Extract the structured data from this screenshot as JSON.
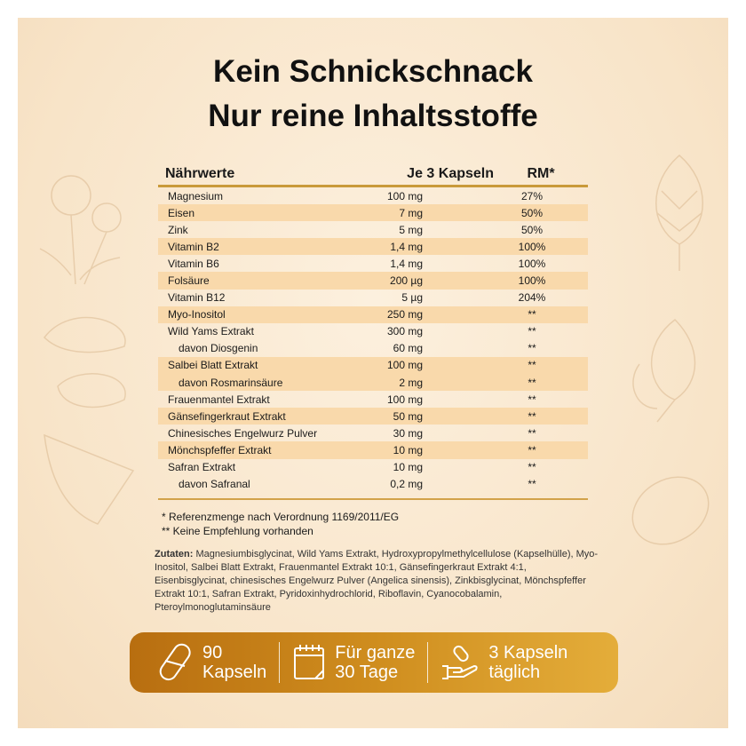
{
  "title": {
    "line1": "Kein Schnickschnack",
    "line2": "Nur reine Inhaltsstoffe"
  },
  "table": {
    "headers": [
      "Nährwerte",
      "Je 3 Kapseln",
      "RM*"
    ],
    "rows": [
      {
        "name": "Magnesium",
        "amount": "100 mg",
        "rm": "27%"
      },
      {
        "name": "Eisen",
        "amount": "7 mg",
        "rm": "50%"
      },
      {
        "name": "Zink",
        "amount": "5 mg",
        "rm": "50%"
      },
      {
        "name": "Vitamin B2",
        "amount": "1,4 mg",
        "rm": "100%"
      },
      {
        "name": "Vitamin B6",
        "amount": "1,4 mg",
        "rm": "100%"
      },
      {
        "name": "Folsäure",
        "amount": "200 µg",
        "rm": "100%"
      },
      {
        "name": "Vitamin B12",
        "amount": "5 µg",
        "rm": "204%"
      },
      {
        "name": "Myo-Inositol",
        "amount": "250 mg",
        "rm": "**"
      },
      {
        "name": "Wild Yams Extrakt",
        "amount": "300 mg",
        "rm": "**"
      },
      {
        "name": "davon Diosgenin",
        "amount": "60 mg",
        "rm": "**"
      },
      {
        "name": "Salbei Blatt Extrakt",
        "amount": "100 mg",
        "rm": "**"
      },
      {
        "name": "davon Rosmarinsäure",
        "amount": "2 mg",
        "rm": "**"
      },
      {
        "name": "Frauenmantel Extrakt",
        "amount": "100 mg",
        "rm": "**"
      },
      {
        "name": "Gänsefingerkraut Extrakt",
        "amount": "50 mg",
        "rm": "**"
      },
      {
        "name": "Chinesisches Engelwurz Pulver",
        "amount": "30 mg",
        "rm": "**"
      },
      {
        "name": "Mönchspfeffer Extrakt",
        "amount": "10 mg",
        "rm": "**"
      },
      {
        "name": "Safran Extrakt",
        "amount": "10 mg",
        "rm": "**"
      },
      {
        "name": "davon Safranal",
        "amount": "0,2 mg",
        "rm": "**"
      }
    ]
  },
  "notes": {
    "n1": "* Referenzmenge nach Verordnung 1169/2011/EG",
    "n2": "** Keine Empfehlung vorhanden"
  },
  "ingredients": {
    "label": "Zutaten:",
    "text": " Magnesiumbisglycinat, Wild Yams Extrakt, Hydroxypropylmethylcellulose (Kapselhülle), Myo-Inositol, Salbei Blatt Extrakt, Frauenmantel Extrakt 10:1, Gänsefingerkraut Extrakt 4:1, Eisenbisglycinat, chinesisches Engelwurz Pulver (Angelica sinensis), Zinkbisglycinat, Mönchspfeffer Extrakt 10:1, Safran Extrakt, Pyridoxinhydrochlorid, Riboflavin, Cyanocobalamin, Pteroylmonoglutaminsäure"
  },
  "features": [
    {
      "icon": "capsule-icon",
      "line1": "90",
      "line2": "Kapseln"
    },
    {
      "icon": "calendar-icon",
      "line1": "Für ganze",
      "line2": "30 Tage"
    },
    {
      "icon": "hand-capsule-icon",
      "line1": "3 Kapseln",
      "line2": "täglich"
    }
  ],
  "colors": {
    "accent": "#c99a3a",
    "stripe": "#f9d9ab",
    "bar": "#cf8d1e"
  }
}
